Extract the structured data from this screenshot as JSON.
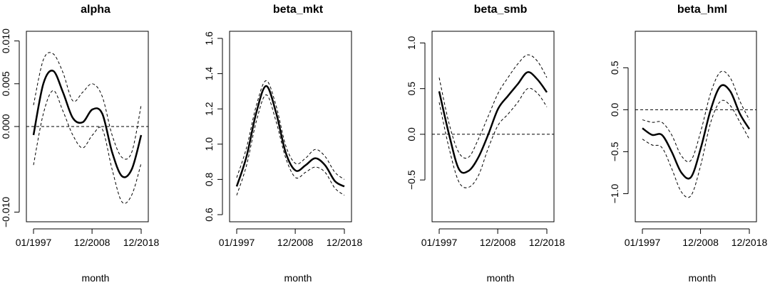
{
  "chart_data": [
    {
      "type": "line",
      "title": "alpha",
      "xlabel": "month",
      "ylabel": "",
      "x_tick_labels": [
        "01/1997",
        "12/2008",
        "12/2018"
      ],
      "x_ticks": [
        "1997-01",
        "2008-12",
        "2018-12"
      ],
      "y_tick_labels": [
        "−0.010",
        "0.000",
        "0.005",
        "0.010"
      ],
      "y_ticks": [
        -0.01,
        0.0,
        0.005,
        0.01
      ],
      "ylim": [
        -0.0103,
        0.0103
      ],
      "reference_line": 0,
      "x": [
        "1997-01",
        "1999-01",
        "2001-01",
        "2003-01",
        "2005-01",
        "2007-01",
        "2009-01",
        "2011-01",
        "2013-01",
        "2015-01",
        "2017-01",
        "2018-12"
      ],
      "series": [
        {
          "role": "estimate",
          "style": "solid",
          "values": [
            -0.001,
            0.005,
            0.0065,
            0.004,
            0.001,
            0.0005,
            0.002,
            0.0015,
            -0.003,
            -0.0058,
            -0.005,
            -0.001
          ]
        },
        {
          "role": "upper",
          "style": "dashed",
          "values": [
            0.0025,
            0.0078,
            0.0085,
            0.0063,
            0.003,
            0.004,
            0.005,
            0.0035,
            -0.001,
            -0.0036,
            -0.003,
            0.0025
          ]
        },
        {
          "role": "lower",
          "style": "dashed",
          "values": [
            -0.0045,
            0.0015,
            0.0042,
            0.0018,
            -0.001,
            -0.0025,
            -0.001,
            -0.0003,
            -0.005,
            -0.0088,
            -0.008,
            -0.0043
          ]
        }
      ]
    },
    {
      "type": "line",
      "title": "beta_mkt",
      "xlabel": "month",
      "ylabel": "",
      "x_tick_labels": [
        "01/1997",
        "12/2008",
        "12/2018"
      ],
      "x_ticks": [
        "1997-01",
        "2008-12",
        "2018-12"
      ],
      "y_tick_labels": [
        "0.6",
        "0.8",
        "1.0",
        "1.2",
        "1.4",
        "1.6"
      ],
      "y_ticks": [
        0.6,
        0.8,
        1.0,
        1.2,
        1.4,
        1.6
      ],
      "ylim": [
        0.6,
        1.6
      ],
      "x": [
        "1997-01",
        "1999-01",
        "2001-01",
        "2003-01",
        "2005-01",
        "2007-01",
        "2009-01",
        "2011-01",
        "2013-01",
        "2015-01",
        "2017-01",
        "2018-12"
      ],
      "series": [
        {
          "role": "estimate",
          "style": "solid",
          "values": [
            0.76,
            0.93,
            1.18,
            1.33,
            1.18,
            0.95,
            0.85,
            0.88,
            0.92,
            0.88,
            0.79,
            0.76
          ]
        },
        {
          "role": "upper",
          "style": "dashed",
          "values": [
            0.81,
            0.98,
            1.22,
            1.36,
            1.22,
            0.99,
            0.89,
            0.92,
            0.97,
            0.93,
            0.84,
            0.8
          ]
        },
        {
          "role": "lower",
          "style": "dashed",
          "values": [
            0.71,
            0.88,
            1.13,
            1.28,
            1.13,
            0.92,
            0.81,
            0.84,
            0.87,
            0.84,
            0.75,
            0.71
          ]
        }
      ]
    },
    {
      "type": "line",
      "title": "beta_smb",
      "xlabel": "month",
      "ylabel": "",
      "x_tick_labels": [
        "01/1997",
        "12/2008",
        "12/2018"
      ],
      "x_ticks": [
        "1997-01",
        "2008-12",
        "2018-12"
      ],
      "y_tick_labels": [
        "−0.5",
        "0.0",
        "0.5",
        "1.0"
      ],
      "y_ticks": [
        -0.5,
        0.0,
        0.5,
        1.0
      ],
      "ylim": [
        -0.88,
        1.05
      ],
      "reference_line": 0,
      "x": [
        "1997-01",
        "1999-01",
        "2001-01",
        "2003-01",
        "2005-01",
        "2007-01",
        "2009-01",
        "2011-01",
        "2013-01",
        "2015-01",
        "2017-01",
        "2018-12"
      ],
      "series": [
        {
          "role": "estimate",
          "style": "solid",
          "values": [
            0.47,
            0.0,
            -0.38,
            -0.4,
            -0.25,
            0.0,
            0.28,
            0.42,
            0.55,
            0.68,
            0.6,
            0.46
          ]
        },
        {
          "role": "upper",
          "style": "dashed",
          "values": [
            0.62,
            0.12,
            -0.2,
            -0.25,
            -0.05,
            0.2,
            0.45,
            0.62,
            0.77,
            0.87,
            0.8,
            0.62
          ]
        },
        {
          "role": "lower",
          "style": "dashed",
          "values": [
            0.35,
            -0.15,
            -0.52,
            -0.58,
            -0.45,
            -0.15,
            0.1,
            0.22,
            0.35,
            0.5,
            0.45,
            0.3
          ]
        }
      ]
    },
    {
      "type": "line",
      "title": "beta_hml",
      "xlabel": "month",
      "ylabel": "",
      "x_tick_labels": [
        "01/1997",
        "12/2008",
        "12/2018"
      ],
      "x_ticks": [
        "1997-01",
        "2008-12",
        "2018-12"
      ],
      "y_tick_labels": [
        "−1.0",
        "−0.5",
        "0.0",
        "0.5"
      ],
      "y_ticks": [
        -1.0,
        -0.5,
        0.0,
        0.5
      ],
      "ylim": [
        -1.25,
        0.85
      ],
      "reference_line": 0,
      "x": [
        "1997-01",
        "1999-01",
        "2001-01",
        "2003-01",
        "2005-01",
        "2007-01",
        "2009-01",
        "2011-01",
        "2013-01",
        "2015-01",
        "2017-01",
        "2018-12"
      ],
      "series": [
        {
          "role": "estimate",
          "style": "solid",
          "values": [
            -0.22,
            -0.3,
            -0.3,
            -0.5,
            -0.75,
            -0.8,
            -0.45,
            0.0,
            0.28,
            0.22,
            -0.05,
            -0.23
          ]
        },
        {
          "role": "upper",
          "style": "dashed",
          "values": [
            -0.12,
            -0.15,
            -0.15,
            -0.3,
            -0.55,
            -0.6,
            -0.25,
            0.2,
            0.45,
            0.38,
            0.1,
            -0.12
          ]
        },
        {
          "role": "lower",
          "style": "dashed",
          "values": [
            -0.35,
            -0.42,
            -0.45,
            -0.7,
            -0.98,
            -1.02,
            -0.65,
            -0.15,
            0.1,
            0.05,
            -0.15,
            -0.35
          ]
        }
      ]
    }
  ]
}
